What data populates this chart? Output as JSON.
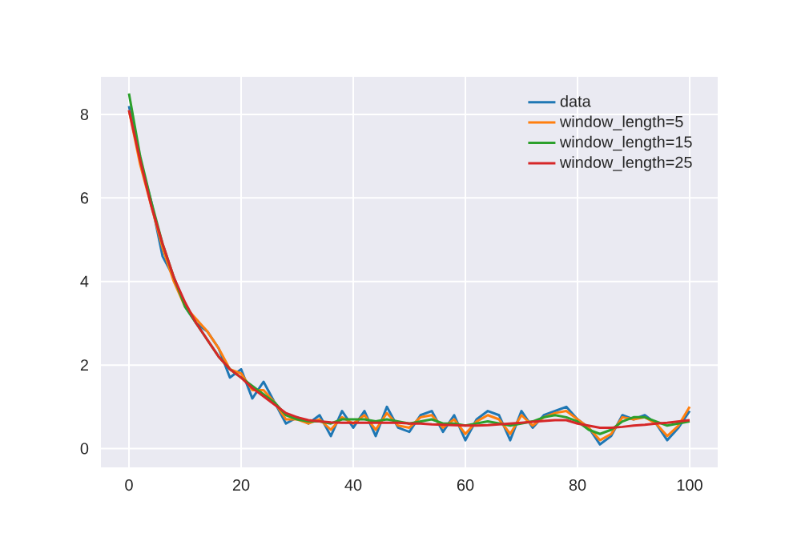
{
  "chart_data": {
    "type": "line",
    "x": [
      0,
      2,
      4,
      6,
      8,
      10,
      12,
      14,
      16,
      18,
      20,
      22,
      24,
      26,
      28,
      30,
      32,
      34,
      36,
      38,
      40,
      42,
      44,
      46,
      48,
      50,
      52,
      54,
      56,
      58,
      60,
      62,
      64,
      66,
      68,
      70,
      72,
      74,
      76,
      78,
      80,
      82,
      84,
      86,
      88,
      90,
      92,
      94,
      96,
      98,
      100
    ],
    "series": [
      {
        "name": "data",
        "color": "#1f77b4",
        "values": [
          8.2,
          6.9,
          5.9,
          4.6,
          4.1,
          3.4,
          3.0,
          2.8,
          2.4,
          1.7,
          1.9,
          1.2,
          1.6,
          1.1,
          0.6,
          0.75,
          0.6,
          0.8,
          0.3,
          0.9,
          0.5,
          0.9,
          0.3,
          1.0,
          0.5,
          0.4,
          0.8,
          0.9,
          0.4,
          0.8,
          0.2,
          0.7,
          0.9,
          0.8,
          0.2,
          0.9,
          0.5,
          0.8,
          0.9,
          1.0,
          0.7,
          0.5,
          0.1,
          0.3,
          0.8,
          0.7,
          0.8,
          0.6,
          0.2,
          0.5,
          0.9
        ]
      },
      {
        "name": "window_length=5",
        "color": "#ff7f0e",
        "values": [
          8.1,
          6.8,
          5.8,
          4.8,
          4.0,
          3.4,
          3.1,
          2.8,
          2.4,
          1.9,
          1.8,
          1.4,
          1.4,
          1.1,
          0.7,
          0.7,
          0.6,
          0.7,
          0.45,
          0.75,
          0.6,
          0.8,
          0.45,
          0.85,
          0.55,
          0.5,
          0.75,
          0.8,
          0.5,
          0.7,
          0.35,
          0.65,
          0.8,
          0.7,
          0.35,
          0.8,
          0.55,
          0.75,
          0.85,
          0.9,
          0.7,
          0.5,
          0.2,
          0.35,
          0.75,
          0.7,
          0.75,
          0.6,
          0.3,
          0.55,
          1.0
        ]
      },
      {
        "name": "window_length=15",
        "color": "#2ca02c",
        "values": [
          8.5,
          7.0,
          5.9,
          4.9,
          4.1,
          3.4,
          3.0,
          2.6,
          2.2,
          1.9,
          1.7,
          1.5,
          1.3,
          1.1,
          0.8,
          0.7,
          0.65,
          0.65,
          0.6,
          0.7,
          0.7,
          0.7,
          0.65,
          0.7,
          0.65,
          0.6,
          0.65,
          0.7,
          0.6,
          0.6,
          0.55,
          0.6,
          0.65,
          0.6,
          0.55,
          0.6,
          0.65,
          0.75,
          0.8,
          0.75,
          0.65,
          0.45,
          0.35,
          0.45,
          0.65,
          0.75,
          0.75,
          0.65,
          0.55,
          0.6,
          0.65
        ]
      },
      {
        "name": "window_length=25",
        "color": "#d62728",
        "values": [
          8.1,
          6.9,
          5.8,
          4.9,
          4.1,
          3.5,
          3.0,
          2.6,
          2.2,
          1.9,
          1.7,
          1.45,
          1.25,
          1.05,
          0.85,
          0.75,
          0.68,
          0.65,
          0.63,
          0.62,
          0.62,
          0.62,
          0.62,
          0.62,
          0.62,
          0.6,
          0.6,
          0.58,
          0.57,
          0.56,
          0.55,
          0.55,
          0.56,
          0.58,
          0.6,
          0.62,
          0.64,
          0.66,
          0.68,
          0.68,
          0.6,
          0.55,
          0.5,
          0.5,
          0.52,
          0.55,
          0.57,
          0.6,
          0.62,
          0.65,
          0.68
        ]
      }
    ],
    "xlim": [
      -5,
      105
    ],
    "ylim": [
      -0.45,
      8.9
    ],
    "xticks": [
      0,
      20,
      40,
      60,
      80,
      100
    ],
    "yticks": [
      0,
      2,
      4,
      6,
      8
    ],
    "grid": true,
    "legend": "top right",
    "marker": "none",
    "line_style": "solid"
  }
}
